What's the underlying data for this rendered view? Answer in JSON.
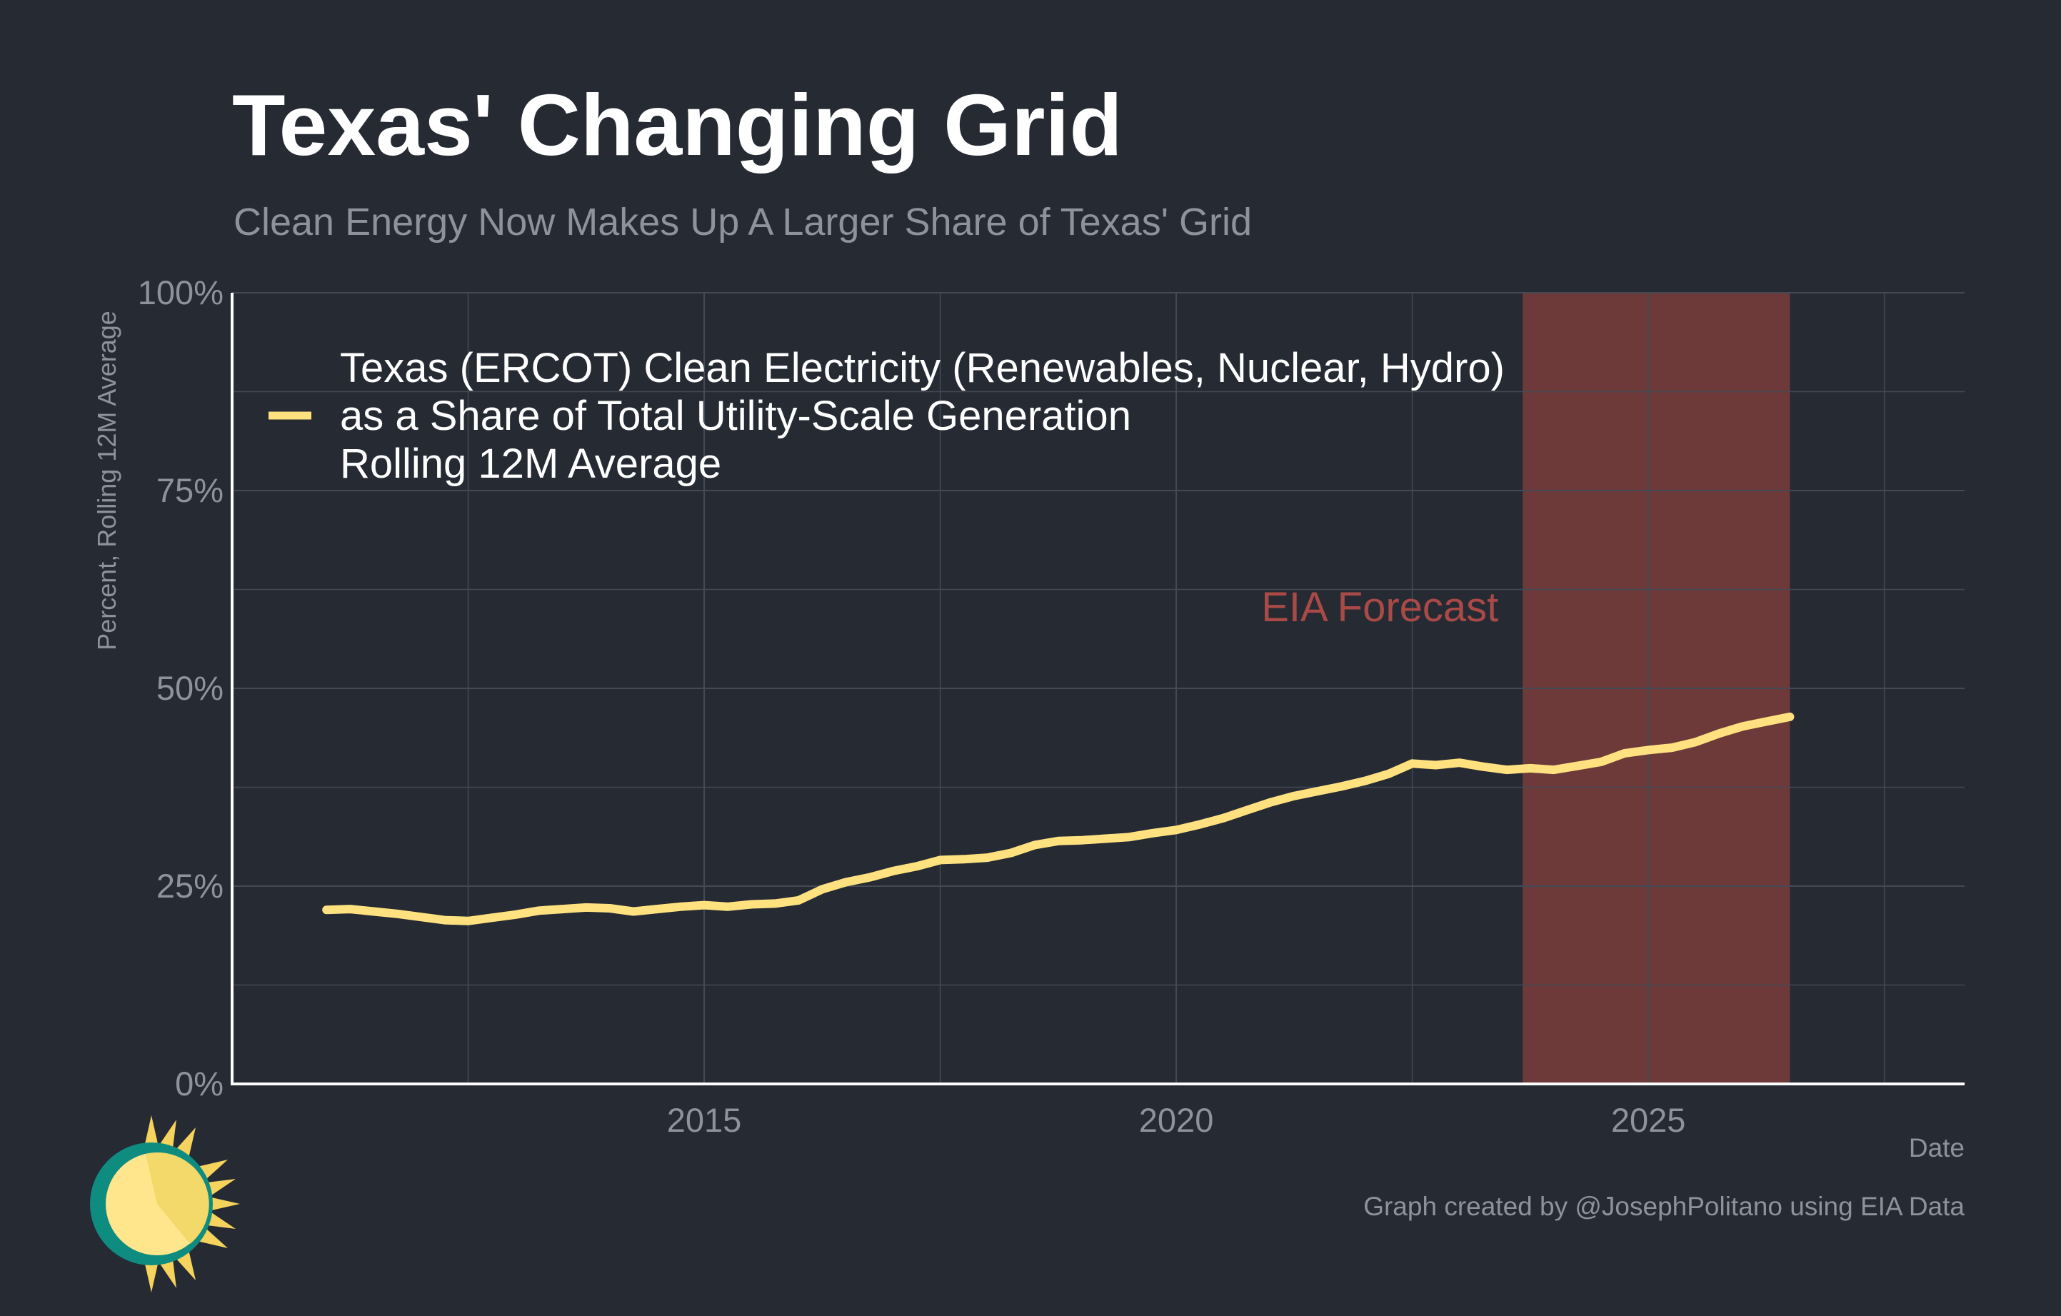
{
  "header": {
    "title": "Texas' Changing Grid",
    "subtitle": "Clean Energy Now Makes Up A Larger Share of Texas' Grid"
  },
  "footer": {
    "credit": "Graph created by @JosephPolitano using EIA Data"
  },
  "colors": {
    "background": "#252a33",
    "line": "#ffe17f",
    "forecast_band": "#7a3d3b",
    "annotation": "#a94a47",
    "grid": "#444a55",
    "axis": "#ffffff",
    "muted_text": "#8e929b"
  },
  "logo_icon": "sun-pie-chart-logo",
  "chart_data": {
    "type": "line",
    "xlabel": "Date",
    "ylabel": "Percent, Rolling 12M Average",
    "ylim": [
      0,
      100
    ],
    "xlim": [
      2010.0,
      2028.35
    ],
    "x_ticks": [
      2015,
      2020,
      2025
    ],
    "x_tick_labels": [
      "2015",
      "2020",
      "2025"
    ],
    "y_ticks": [
      0,
      25,
      50,
      75,
      100
    ],
    "y_tick_labels": [
      "0%",
      "25%",
      "50%",
      "75%",
      "100%"
    ],
    "grid": true,
    "legend_position": "top-left",
    "legend": [
      "Texas (ERCOT) Clean Electricity (Renewables, Nuclear, Hydro)",
      "as a Share of Total Utility-Scale Generation",
      "Rolling 12M Average"
    ],
    "annotation": {
      "text": "EIA Forecast",
      "x_start": 2023.67,
      "x_end": 2026.5
    },
    "series": [
      {
        "name": "Texas (ERCOT) Clean Electricity (Renewables, Nuclear, Hydro) as a Share of Total Utility-Scale Generation Rolling 12M Average",
        "x": [
          2011.0,
          2011.25,
          2011.5,
          2011.75,
          2012.0,
          2012.25,
          2012.5,
          2012.75,
          2013.0,
          2013.25,
          2013.5,
          2013.75,
          2014.0,
          2014.25,
          2014.5,
          2014.75,
          2015.0,
          2015.25,
          2015.5,
          2015.75,
          2016.0,
          2016.25,
          2016.5,
          2016.75,
          2017.0,
          2017.25,
          2017.5,
          2017.75,
          2018.0,
          2018.25,
          2018.5,
          2018.75,
          2019.0,
          2019.25,
          2019.5,
          2019.75,
          2020.0,
          2020.25,
          2020.5,
          2020.75,
          2021.0,
          2021.25,
          2021.5,
          2021.75,
          2022.0,
          2022.25,
          2022.5,
          2022.75,
          2023.0,
          2023.25,
          2023.5,
          2023.75,
          2024.0,
          2024.25,
          2024.5,
          2024.75,
          2025.0,
          2025.25,
          2025.5,
          2025.75,
          2026.0,
          2026.25,
          2026.5
        ],
        "y": [
          22.0,
          22.1,
          21.8,
          21.5,
          21.1,
          20.7,
          20.6,
          21.0,
          21.4,
          21.9,
          22.1,
          22.3,
          22.2,
          21.8,
          22.1,
          22.4,
          22.6,
          22.4,
          22.7,
          22.8,
          23.2,
          24.6,
          25.5,
          26.1,
          26.9,
          27.5,
          28.3,
          28.4,
          28.6,
          29.2,
          30.2,
          30.7,
          30.8,
          31.0,
          31.2,
          31.7,
          32.1,
          32.8,
          33.6,
          34.6,
          35.6,
          36.4,
          37.0,
          37.6,
          38.3,
          39.2,
          40.5,
          40.3,
          40.6,
          40.1,
          39.7,
          39.9,
          39.7,
          40.2,
          40.7,
          41.8,
          42.2,
          42.5,
          43.2,
          44.3,
          45.2,
          45.8,
          46.4
        ]
      }
    ]
  }
}
